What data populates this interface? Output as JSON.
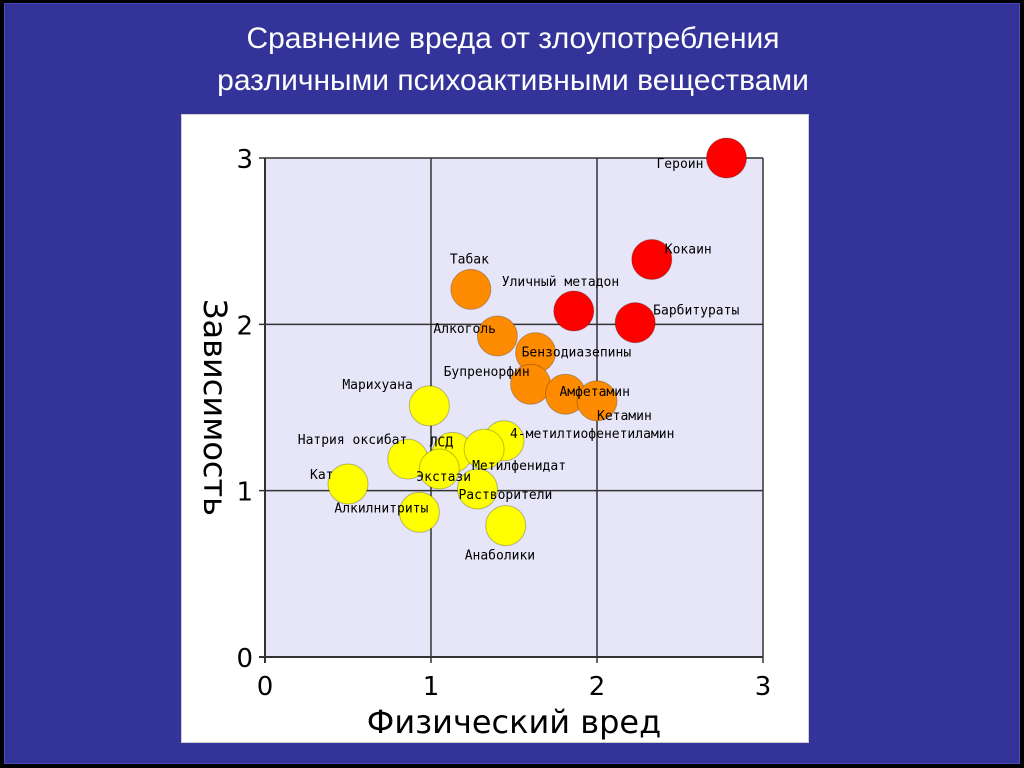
{
  "slide": {
    "title_line1": "Сравнение вреда от злоупотребления",
    "title_line2": "различными психоактивными веществами"
  },
  "colors": {
    "slide_bg": "#333399",
    "plot_bg": "#e6e6f8",
    "grid": "#333333",
    "high": "#ff0000",
    "medium": "#ff8c00",
    "low": "#ffff00"
  },
  "chart_data": {
    "type": "scatter",
    "xlabel": "Физический вред",
    "ylabel": "Зависимость",
    "xlim": [
      0,
      3
    ],
    "ylim": [
      0,
      3
    ],
    "xticks": [
      "0",
      "1",
      "2",
      "3"
    ],
    "yticks": [
      "0",
      "1",
      "2",
      "3"
    ],
    "grid": true,
    "points": [
      {
        "label": "Героин",
        "x": 2.78,
        "y": 3.0,
        "level": "high"
      },
      {
        "label": "Кокаин",
        "x": 2.33,
        "y": 2.39,
        "level": "high"
      },
      {
        "label": "Уличный метадон",
        "x": 1.86,
        "y": 2.08,
        "level": "high"
      },
      {
        "label": "Барбитураты",
        "x": 2.23,
        "y": 2.01,
        "level": "high"
      },
      {
        "label": "Табак",
        "x": 1.24,
        "y": 2.21,
        "level": "medium"
      },
      {
        "label": "Алкоголь",
        "x": 1.4,
        "y": 1.93,
        "level": "medium"
      },
      {
        "label": "Бензодиазепины",
        "x": 1.63,
        "y": 1.83,
        "level": "medium"
      },
      {
        "label": "Бупренорфин",
        "x": 1.6,
        "y": 1.64,
        "level": "medium"
      },
      {
        "label": "Амфетамин",
        "x": 1.81,
        "y": 1.58,
        "level": "medium"
      },
      {
        "label": "Кетамин",
        "x": 2.0,
        "y": 1.54,
        "level": "medium"
      },
      {
        "label": "Марихуана",
        "x": 0.99,
        "y": 1.51,
        "level": "low"
      },
      {
        "label": "Натрия оксибат",
        "x": 0.86,
        "y": 1.19,
        "level": "low"
      },
      {
        "label": "ЛСД",
        "x": 1.13,
        "y": 1.23,
        "level": "low"
      },
      {
        "label": "4-метилтиофенетиламин",
        "x": 1.44,
        "y": 1.3,
        "level": "low"
      },
      {
        "label": "Метилфенидат",
        "x": 1.32,
        "y": 1.25,
        "level": "low"
      },
      {
        "label": "Экстази",
        "x": 1.05,
        "y": 1.13,
        "level": "low"
      },
      {
        "label": "Кат",
        "x": 0.5,
        "y": 1.04,
        "level": "low"
      },
      {
        "label": "Растворители",
        "x": 1.28,
        "y": 1.01,
        "level": "low"
      },
      {
        "label": "Алкилнитриты",
        "x": 0.93,
        "y": 0.87,
        "level": "low"
      },
      {
        "label": "Анаболики",
        "x": 1.45,
        "y": 0.79,
        "level": "low"
      }
    ]
  }
}
